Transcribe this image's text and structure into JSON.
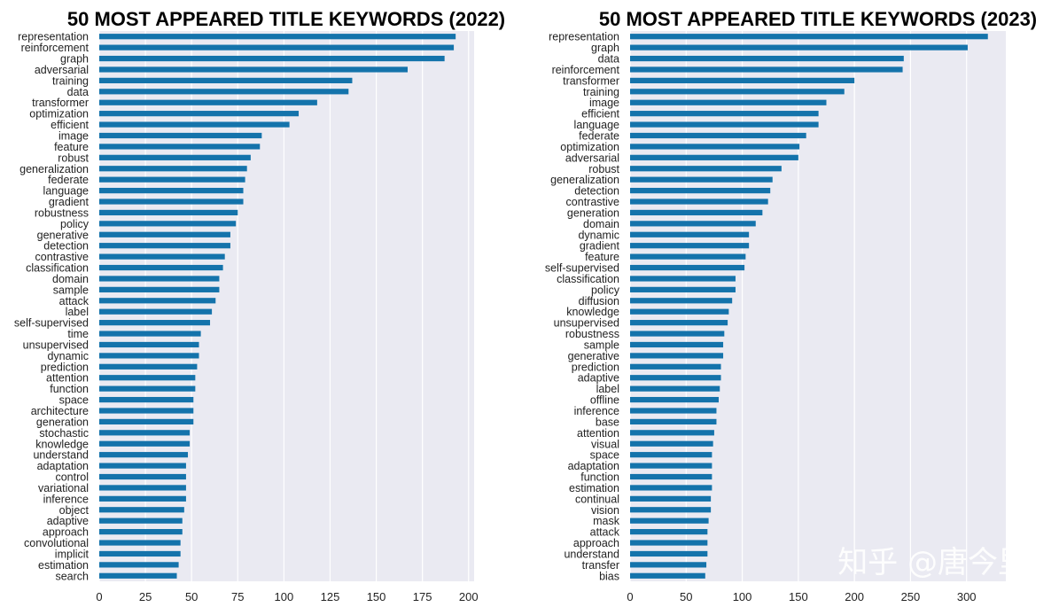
{
  "chart_data": [
    {
      "type": "bar",
      "orientation": "horizontal",
      "title": "50 MOST APPEARED TITLE KEYWORDS (2022)",
      "xlabel": "",
      "ylabel": "",
      "xlim": [
        0,
        203
      ],
      "xticks": [
        0,
        25,
        50,
        75,
        100,
        125,
        150,
        175,
        200
      ],
      "grid": true,
      "color": "#1473ab",
      "categories": [
        "representation",
        "reinforcement",
        "graph",
        "adversarial",
        "training",
        "data",
        "transformer",
        "optimization",
        "efficient",
        "image",
        "feature",
        "robust",
        "generalization",
        "federate",
        "language",
        "gradient",
        "robustness",
        "policy",
        "generative",
        "detection",
        "contrastive",
        "classification",
        "domain",
        "sample",
        "attack",
        "label",
        "self-supervised",
        "time",
        "unsupervised",
        "dynamic",
        "prediction",
        "attention",
        "function",
        "space",
        "architecture",
        "generation",
        "stochastic",
        "knowledge",
        "understand",
        "adaptation",
        "control",
        "variational",
        "inference",
        "object",
        "adaptive",
        "approach",
        "convolutional",
        "implicit",
        "estimation",
        "search"
      ],
      "values": [
        193,
        192,
        187,
        167,
        137,
        135,
        118,
        108,
        103,
        88,
        87,
        82,
        80,
        79,
        78,
        78,
        75,
        74,
        71,
        71,
        68,
        67,
        65,
        65,
        63,
        61,
        60,
        55,
        54,
        54,
        53,
        52,
        52,
        51,
        51,
        51,
        49,
        49,
        48,
        47,
        47,
        47,
        47,
        46,
        45,
        45,
        44,
        44,
        43,
        42
      ]
    },
    {
      "type": "bar",
      "orientation": "horizontal",
      "title": "50 MOST APPEARED TITLE KEYWORDS (2023)",
      "xlabel": "",
      "ylabel": "",
      "xlim": [
        0,
        335
      ],
      "xticks": [
        0,
        50,
        100,
        150,
        200,
        250,
        300
      ],
      "grid": true,
      "color": "#1473ab",
      "categories": [
        "representation",
        "graph",
        "data",
        "reinforcement",
        "transformer",
        "training",
        "image",
        "efficient",
        "language",
        "federate",
        "optimization",
        "adversarial",
        "robust",
        "generalization",
        "detection",
        "contrastive",
        "generation",
        "domain",
        "dynamic",
        "gradient",
        "feature",
        "self-supervised",
        "classification",
        "policy",
        "diffusion",
        "knowledge",
        "unsupervised",
        "robustness",
        "sample",
        "generative",
        "prediction",
        "adaptive",
        "label",
        "offline",
        "inference",
        "base",
        "attention",
        "visual",
        "space",
        "adaptation",
        "function",
        "estimation",
        "continual",
        "vision",
        "mask",
        "attack",
        "approach",
        "understand",
        "transfer",
        "bias"
      ],
      "values": [
        319,
        301,
        244,
        243,
        200,
        191,
        175,
        168,
        168,
        157,
        151,
        150,
        135,
        127,
        125,
        123,
        118,
        112,
        106,
        106,
        103,
        102,
        94,
        94,
        91,
        88,
        87,
        84,
        83,
        83,
        81,
        81,
        80,
        79,
        77,
        77,
        75,
        74,
        73,
        73,
        73,
        73,
        72,
        72,
        70,
        69,
        69,
        69,
        68,
        67
      ]
    }
  ],
  "watermark": "知乎 @唐今里"
}
